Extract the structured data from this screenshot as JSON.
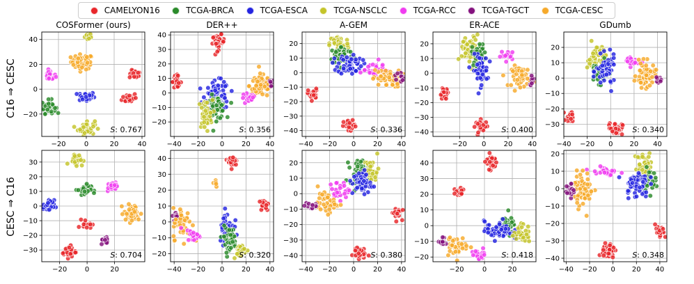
{
  "legend": {
    "items": [
      {
        "label": "CAMELYON16",
        "color": "#e8262a"
      },
      {
        "label": "TCGA-BRCA",
        "color": "#2a8a2a"
      },
      {
        "label": "TCGA-ESCA",
        "color": "#2424e0"
      },
      {
        "label": "TCGA-NSCLC",
        "color": "#c4c42a"
      },
      {
        "label": "TCGA-RCC",
        "color": "#f03cf0"
      },
      {
        "label": "TCGA-TGCT",
        "color": "#84127e"
      },
      {
        "label": "TCGA-CESC",
        "color": "#f6a92a"
      }
    ]
  },
  "rows": [
    {
      "label": "C16 ⇒ CESC"
    },
    {
      "label": "CESC ⇒ C16"
    }
  ],
  "chart_data": [
    {
      "type": "scatter",
      "row": 0,
      "title": "COSFormer (ours)",
      "score_prefix": "S",
      "score": "0.767",
      "xlim": [
        -32,
        42
      ],
      "ylim": [
        -38,
        46
      ],
      "xticks": [
        -20,
        0,
        20,
        40
      ],
      "yticks": [
        -20,
        0,
        20,
        40
      ],
      "clusters": [
        {
          "cls": 3,
          "cx": 2,
          "cy": 43,
          "sx": 1.5,
          "sy": 2,
          "n": 14
        },
        {
          "cls": 6,
          "cx": -3,
          "cy": 22,
          "sx": 4,
          "sy": 3,
          "n": 50
        },
        {
          "cls": 4,
          "cx": -26,
          "cy": 11,
          "sx": 2,
          "sy": 2,
          "n": 20
        },
        {
          "cls": 0,
          "cx": 35,
          "cy": 12,
          "sx": 2,
          "sy": 1.6,
          "n": 25
        },
        {
          "cls": 2,
          "cx": 0,
          "cy": -6,
          "sx": 3,
          "sy": 2,
          "n": 35
        },
        {
          "cls": 0,
          "cx": 31,
          "cy": -7,
          "sx": 2.6,
          "sy": 2,
          "n": 30
        },
        {
          "cls": 1,
          "cx": -27,
          "cy": -14,
          "sx": 2.5,
          "sy": 2.6,
          "n": 40
        },
        {
          "cls": 3,
          "cx": 0,
          "cy": -31,
          "sx": 3,
          "sy": 3,
          "n": 40
        }
      ]
    },
    {
      "type": "scatter",
      "row": 0,
      "title": "DER++",
      "score_prefix": "S",
      "score": "0.356",
      "xlim": [
        -43,
        43
      ],
      "ylim": [
        -30,
        42
      ],
      "xticks": [
        -40,
        -20,
        0,
        20,
        40
      ],
      "yticks": [
        -20,
        -10,
        0,
        10,
        20,
        30,
        40
      ],
      "clusters": [
        {
          "cls": 0,
          "cx": -3,
          "cy": 35,
          "sx": 2.5,
          "sy": 2.5,
          "n": 35
        },
        {
          "cls": 0,
          "cx": -38,
          "cy": 8,
          "sx": 2,
          "sy": 2,
          "n": 25
        },
        {
          "cls": 6,
          "cx": 33,
          "cy": 5,
          "sx": 5,
          "sy": 4,
          "n": 70
        },
        {
          "cls": 5,
          "cx": 41,
          "cy": 6,
          "sx": 1.2,
          "sy": 1.6,
          "n": 8
        },
        {
          "cls": 4,
          "cx": 22,
          "cy": -4,
          "sx": 3,
          "sy": 2,
          "n": 20
        },
        {
          "cls": 2,
          "cx": -4,
          "cy": -2,
          "sx": 5,
          "sy": 5,
          "n": 80
        },
        {
          "cls": 1,
          "cx": -5,
          "cy": -10,
          "sx": 4,
          "sy": 4,
          "n": 55
        },
        {
          "cls": 3,
          "cx": -14,
          "cy": -15,
          "sx": 3,
          "sy": 5,
          "n": 40
        }
      ]
    },
    {
      "type": "scatter",
      "row": 0,
      "title": "A-GEM",
      "score_prefix": "S",
      "score": "0.336",
      "xlim": [
        -43,
        43
      ],
      "ylim": [
        -44,
        28
      ],
      "xticks": [
        -40,
        -20,
        0,
        20,
        40
      ],
      "yticks": [
        -40,
        -30,
        -20,
        -10,
        0,
        10,
        20
      ],
      "clusters": [
        {
          "cls": 3,
          "cx": -12,
          "cy": 20,
          "sx": 4,
          "sy": 3,
          "n": 40
        },
        {
          "cls": 1,
          "cx": -10,
          "cy": 12,
          "sx": 5,
          "sy": 3,
          "n": 50
        },
        {
          "cls": 2,
          "cx": -3,
          "cy": 6,
          "sx": 5,
          "sy": 3.5,
          "n": 55
        },
        {
          "cls": 4,
          "cx": 15,
          "cy": 2,
          "sx": 9,
          "sy": 3,
          "n": 25
        },
        {
          "cls": 6,
          "cx": 28,
          "cy": -4,
          "sx": 6,
          "sy": 3,
          "n": 55
        },
        {
          "cls": 5,
          "cx": 38,
          "cy": -3,
          "sx": 2,
          "sy": 2,
          "n": 10
        },
        {
          "cls": 0,
          "cx": -34,
          "cy": -15,
          "sx": 2,
          "sy": 2,
          "n": 22
        },
        {
          "cls": 0,
          "cx": -3,
          "cy": -37,
          "sx": 2.6,
          "sy": 2,
          "n": 35
        }
      ]
    },
    {
      "type": "scatter",
      "row": 0,
      "title": "ER-ACE",
      "score_prefix": "S",
      "score": "0.400",
      "xlim": [
        -42,
        43
      ],
      "ylim": [
        -43,
        28
      ],
      "xticks": [
        -20,
        0,
        20,
        40
      ],
      "yticks": [
        -40,
        -30,
        -20,
        -10,
        0,
        10,
        20
      ],
      "clusters": [
        {
          "cls": 3,
          "cx": -12,
          "cy": 16,
          "sx": 4,
          "sy": 5,
          "n": 50
        },
        {
          "cls": 1,
          "cx": -4,
          "cy": 13,
          "sx": 3,
          "sy": 4,
          "n": 40
        },
        {
          "cls": 2,
          "cx": -3,
          "cy": 2,
          "sx": 3,
          "sy": 5,
          "n": 55
        },
        {
          "cls": 4,
          "cx": 20,
          "cy": 12,
          "sx": 3,
          "sy": 1.6,
          "n": 18
        },
        {
          "cls": 6,
          "cx": 31,
          "cy": -2,
          "sx": 4,
          "sy": 3.5,
          "n": 55
        },
        {
          "cls": 5,
          "cx": 40,
          "cy": -5,
          "sx": 1.5,
          "sy": 1.5,
          "n": 8
        },
        {
          "cls": 0,
          "cx": -33,
          "cy": -14,
          "sx": 2,
          "sy": 2,
          "n": 20
        },
        {
          "cls": 0,
          "cx": -2,
          "cy": -36,
          "sx": 2.4,
          "sy": 2,
          "n": 35
        }
      ]
    },
    {
      "type": "scatter",
      "row": 0,
      "title": "GDumb",
      "score_prefix": "S",
      "score": "0.340",
      "xlim": [
        -40,
        48
      ],
      "ylim": [
        -38,
        30
      ],
      "xticks": [
        -40,
        -20,
        0,
        20,
        40
      ],
      "yticks": [
        -30,
        -20,
        -10,
        0,
        10,
        20
      ],
      "clusters": [
        {
          "cls": 3,
          "cx": -12,
          "cy": 13,
          "sx": 4,
          "sy": 5,
          "n": 50
        },
        {
          "cls": 1,
          "cx": -10,
          "cy": 4,
          "sx": 4,
          "sy": 3.5,
          "n": 45
        },
        {
          "cls": 2,
          "cx": -4,
          "cy": 4,
          "sx": 4,
          "sy": 5,
          "n": 55
        },
        {
          "cls": 4,
          "cx": 18,
          "cy": 11,
          "sx": 3,
          "sy": 1.8,
          "n": 22
        },
        {
          "cls": 6,
          "cx": 30,
          "cy": 2,
          "sx": 4,
          "sy": 4,
          "n": 60
        },
        {
          "cls": 5,
          "cx": 41,
          "cy": -2,
          "sx": 1.5,
          "sy": 1.5,
          "n": 8
        },
        {
          "cls": 0,
          "cx": -34,
          "cy": -25,
          "sx": 2,
          "sy": 2,
          "n": 22
        },
        {
          "cls": 0,
          "cx": 4,
          "cy": -33,
          "sx": 3,
          "sy": 2,
          "n": 35
        }
      ]
    },
    {
      "type": "scatter",
      "row": 1,
      "title": "",
      "score_prefix": "S",
      "score": "0.704",
      "xlim": [
        -33,
        42
      ],
      "ylim": [
        -38,
        38
      ],
      "xticks": [
        -20,
        0,
        20
      ],
      "yticks": [
        -30,
        -20,
        -10,
        0,
        10,
        20,
        30
      ],
      "clusters": [
        {
          "cls": 3,
          "cx": -8,
          "cy": 32,
          "sx": 2.5,
          "sy": 2,
          "n": 30
        },
        {
          "cls": 1,
          "cx": -2,
          "cy": 11,
          "sx": 2.5,
          "sy": 2,
          "n": 35
        },
        {
          "cls": 4,
          "cx": 18,
          "cy": 13,
          "sx": 2,
          "sy": 1.5,
          "n": 22
        },
        {
          "cls": 2,
          "cx": -28,
          "cy": 0,
          "sx": 2,
          "sy": 2,
          "n": 30
        },
        {
          "cls": 6,
          "cx": 33,
          "cy": -5,
          "sx": 3,
          "sy": 3,
          "n": 45
        },
        {
          "cls": 0,
          "cx": 0,
          "cy": -12,
          "sx": 1.8,
          "sy": 1.5,
          "n": 18
        },
        {
          "cls": 5,
          "cx": 13,
          "cy": -24,
          "sx": 1.2,
          "sy": 1.5,
          "n": 10
        },
        {
          "cls": 0,
          "cx": -13,
          "cy": -31,
          "sx": 2.5,
          "sy": 2,
          "n": 35
        }
      ]
    },
    {
      "type": "scatter",
      "row": 1,
      "title": "",
      "score_prefix": "S",
      "score": "0.320",
      "xlim": [
        -43,
        43
      ],
      "ylim": [
        -25,
        45
      ],
      "xticks": [
        -40,
        -20,
        0,
        20,
        40
      ],
      "yticks": [
        -20,
        -10,
        0,
        10,
        20,
        30,
        40
      ],
      "clusters": [
        {
          "cls": 0,
          "cx": 9,
          "cy": 38,
          "sx": 2,
          "sy": 2,
          "n": 25
        },
        {
          "cls": 6,
          "cx": -6,
          "cy": 25,
          "sx": 1.2,
          "sy": 1.5,
          "n": 10
        },
        {
          "cls": 0,
          "cx": 35,
          "cy": 11,
          "sx": 2,
          "sy": 2,
          "n": 25
        },
        {
          "cls": 5,
          "cx": -38,
          "cy": 3,
          "sx": 1.6,
          "sy": 1.6,
          "n": 12
        },
        {
          "cls": 6,
          "cx": -33,
          "cy": -1,
          "sx": 4,
          "sy": 5,
          "n": 45
        },
        {
          "cls": 4,
          "cx": -24,
          "cy": -8,
          "sx": 3,
          "sy": 2,
          "n": 20
        },
        {
          "cls": 2,
          "cx": 4,
          "cy": -4,
          "sx": 3,
          "sy": 5,
          "n": 55
        },
        {
          "cls": 1,
          "cx": 6,
          "cy": -11,
          "sx": 3,
          "sy": 4,
          "n": 45
        },
        {
          "cls": 3,
          "cx": 15,
          "cy": -18,
          "sx": 3,
          "sy": 2,
          "n": 30
        }
      ]
    },
    {
      "type": "scatter",
      "row": 1,
      "title": "",
      "score_prefix": "S",
      "score": "0.380",
      "xlim": [
        -43,
        43
      ],
      "ylim": [
        -44,
        28
      ],
      "xticks": [
        -40,
        -20,
        0,
        20,
        40
      ],
      "yticks": [
        -40,
        -30,
        -20,
        -10,
        0,
        10,
        20
      ],
      "clusters": [
        {
          "cls": 1,
          "cx": 5,
          "cy": 14,
          "sx": 4,
          "sy": 4,
          "n": 50
        },
        {
          "cls": 3,
          "cx": 15,
          "cy": 15,
          "sx": 3,
          "sy": 4,
          "n": 30
        },
        {
          "cls": 2,
          "cx": 7,
          "cy": 7,
          "sx": 4,
          "sy": 4,
          "n": 50
        },
        {
          "cls": 4,
          "cx": -12,
          "cy": 2,
          "sx": 4,
          "sy": 3,
          "n": 25
        },
        {
          "cls": 6,
          "cx": -22,
          "cy": -6,
          "sx": 4,
          "sy": 3,
          "n": 45
        },
        {
          "cls": 5,
          "cx": -35,
          "cy": -8,
          "sx": 3,
          "sy": 1.5,
          "n": 18
        },
        {
          "cls": 0,
          "cx": 36,
          "cy": -12,
          "sx": 2,
          "sy": 2,
          "n": 22
        },
        {
          "cls": 0,
          "cx": 4,
          "cy": -38,
          "sx": 2.6,
          "sy": 2,
          "n": 35
        }
      ]
    },
    {
      "type": "scatter",
      "row": 1,
      "title": "",
      "score_prefix": "S",
      "score": "0.418",
      "xlim": [
        -37,
        37
      ],
      "ylim": [
        -23,
        48
      ],
      "xticks": [
        -20,
        0,
        20
      ],
      "yticks": [
        -20,
        -10,
        0,
        10,
        20,
        30,
        40
      ],
      "clusters": [
        {
          "cls": 0,
          "cx": 5,
          "cy": 41,
          "sx": 2,
          "sy": 2.5,
          "n": 30
        },
        {
          "cls": 0,
          "cx": -18,
          "cy": 21,
          "sx": 2,
          "sy": 1.6,
          "n": 25
        },
        {
          "cls": 1,
          "cx": 16,
          "cy": -1,
          "sx": 3,
          "sy": 3,
          "n": 40
        },
        {
          "cls": 2,
          "cx": 10,
          "cy": -3,
          "sx": 5,
          "sy": 3,
          "n": 55
        },
        {
          "cls": 3,
          "cx": 27,
          "cy": -5,
          "sx": 3,
          "sy": 3,
          "n": 35
        },
        {
          "cls": 4,
          "cx": -3,
          "cy": -18,
          "sx": 3,
          "sy": 1.6,
          "n": 18
        },
        {
          "cls": 6,
          "cx": -20,
          "cy": -13,
          "sx": 4,
          "sy": 3,
          "n": 45
        },
        {
          "cls": 5,
          "cx": -29,
          "cy": -10,
          "sx": 2,
          "sy": 1.2,
          "n": 12
        }
      ]
    },
    {
      "type": "scatter",
      "row": 1,
      "title": "",
      "score_prefix": "S",
      "score": "0.348",
      "xlim": [
        -42,
        46
      ],
      "ylim": [
        -42,
        22
      ],
      "xticks": [
        -40,
        -20,
        0,
        20,
        40
      ],
      "yticks": [
        -40,
        -30,
        -20,
        -10,
        0,
        10,
        20
      ],
      "clusters": [
        {
          "cls": 3,
          "cx": 27,
          "cy": 13,
          "sx": 4,
          "sy": 4,
          "n": 45
        },
        {
          "cls": 1,
          "cx": 30,
          "cy": 5,
          "sx": 3,
          "sy": 3,
          "n": 30
        },
        {
          "cls": 2,
          "cx": 20,
          "cy": 3,
          "sx": 5,
          "sy": 4,
          "n": 55
        },
        {
          "cls": 4,
          "cx": -8,
          "cy": 10,
          "sx": 6,
          "sy": 1.6,
          "n": 25
        },
        {
          "cls": 6,
          "cx": -25,
          "cy": 0,
          "sx": 4,
          "sy": 5,
          "n": 55
        },
        {
          "cls": 5,
          "cx": -37,
          "cy": -2,
          "sx": 2,
          "sy": 2.5,
          "n": 15
        },
        {
          "cls": 0,
          "cx": 40,
          "cy": -25,
          "sx": 2,
          "sy": 2,
          "n": 22
        },
        {
          "cls": 0,
          "cx": -4,
          "cy": -36,
          "sx": 2.6,
          "sy": 2.5,
          "n": 35
        }
      ]
    }
  ]
}
